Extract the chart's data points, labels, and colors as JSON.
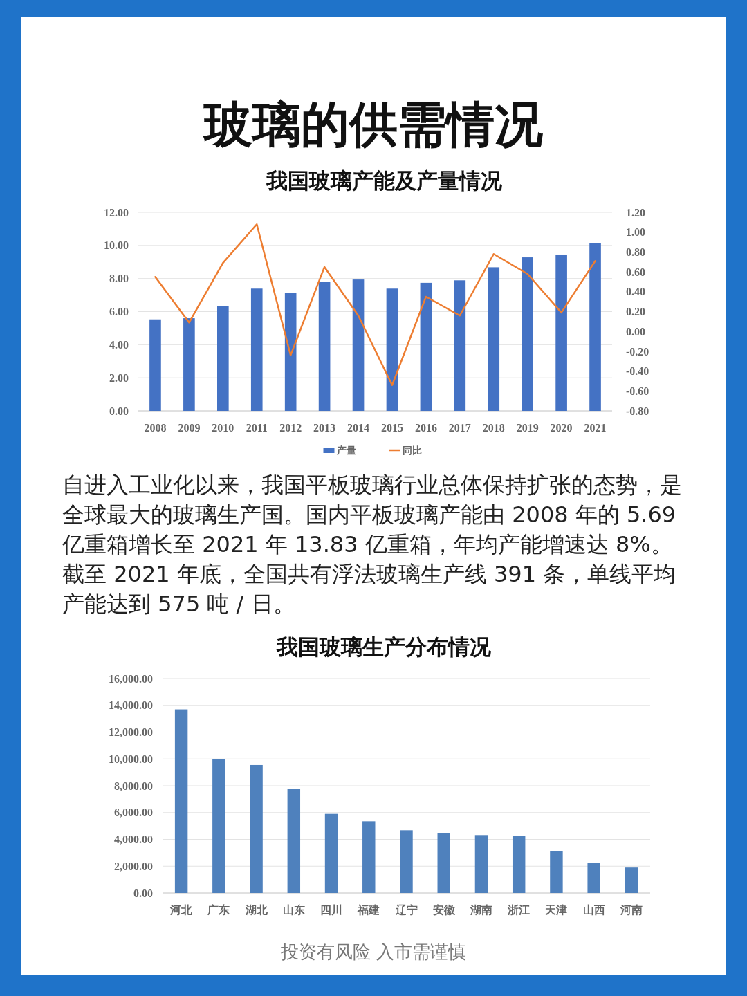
{
  "chart_data": [
    {
      "type": "other",
      "title": "玻璃的供需情况"
    },
    {
      "type": "bar",
      "title": "我国玻璃产能及产量情况",
      "categories": [
        "2008",
        "2009",
        "2010",
        "2011",
        "2012",
        "2013",
        "2014",
        "2015",
        "2016",
        "2017",
        "2018",
        "2019",
        "2020",
        "2021"
      ],
      "series": [
        {
          "name": "产量",
          "color": "#4472c4",
          "values": [
            5.53,
            5.6,
            6.32,
            7.39,
            7.13,
            7.79,
            7.94,
            7.39,
            7.74,
            7.89,
            8.68,
            9.28,
            9.45,
            10.15
          ]
        },
        {
          "name": "同比",
          "type": "line",
          "axis": "y2",
          "color": "#ed7d31",
          "values": [
            0.55,
            0.09,
            0.69,
            1.08,
            -0.24,
            0.65,
            0.16,
            -0.54,
            0.35,
            0.16,
            0.78,
            0.58,
            0.19,
            0.71
          ]
        }
      ],
      "ylim": [
        0,
        12
      ],
      "yticks": [
        {
          "value": 0,
          "label": "0.00"
        },
        {
          "value": 2,
          "label": "2.00"
        },
        {
          "value": 4,
          "label": "4.00"
        },
        {
          "value": 6,
          "label": "6.00"
        },
        {
          "value": 8,
          "label": "8.00"
        },
        {
          "value": 10,
          "label": "10.00"
        },
        {
          "value": 12,
          "label": "12.00"
        }
      ],
      "y2lim": [
        -0.8,
        1.2
      ],
      "y2ticks": [
        {
          "value": -0.8,
          "label": "-0.80"
        },
        {
          "value": -0.6,
          "label": "-0.60"
        },
        {
          "value": -0.4,
          "label": "-0.40"
        },
        {
          "value": -0.2,
          "label": "-0.20"
        },
        {
          "value": 0,
          "label": "0.00"
        },
        {
          "value": 0.2,
          "label": "0.20"
        },
        {
          "value": 0.4,
          "label": "0.40"
        },
        {
          "value": 0.6,
          "label": "0.60"
        },
        {
          "value": 0.8,
          "label": "0.80"
        },
        {
          "value": 1,
          "label": "1.00"
        },
        {
          "value": 1.2,
          "label": "1.20"
        }
      ],
      "grid": "y",
      "legend": "bottom"
    },
    {
      "type": "other",
      "annotations": [
        "自进入工业化以来，我国平板玻璃行业总体保持扩张的态势，是全球最大的玻璃生产国。国内平板玻璃产能由 2008 年的 5.69 亿重箱增长至 2021 年 13.83 亿重箱，年均产能增速达 8%。截至 2021 年底，全国共有浮法玻璃生产线 391 条，单线平均产能达到 575 吨 / 日。"
      ]
    },
    {
      "type": "bar",
      "title": "我国玻璃生产分布情况",
      "categories": [
        "河北",
        "广东",
        "湖北",
        "山东",
        "四川",
        "福建",
        "辽宁",
        "安徽",
        "湖南",
        "浙江",
        "天津",
        "山西",
        "河南"
      ],
      "values": [
        13700,
        10000,
        9550,
        7780,
        5900,
        5350,
        4680,
        4480,
        4320,
        4270,
        3130,
        2240,
        1900
      ],
      "color": "#4f81bd",
      "ylim": [
        0,
        16000
      ],
      "yticks": [
        {
          "value": 0,
          "label": "0.00"
        },
        {
          "value": 2000,
          "label": "2,000.00"
        },
        {
          "value": 4000,
          "label": "4,000.00"
        },
        {
          "value": 6000,
          "label": "6,000.00"
        },
        {
          "value": 8000,
          "label": "8,000.00"
        },
        {
          "value": 10000,
          "label": "10,000.00"
        },
        {
          "value": 12000,
          "label": "12,000.00"
        },
        {
          "value": 14000,
          "label": "14,000.00"
        },
        {
          "value": 16000,
          "label": "16,000.00"
        }
      ],
      "grid": "y",
      "annotations": [
        "投资有风险 入市需谨慎"
      ]
    }
  ]
}
